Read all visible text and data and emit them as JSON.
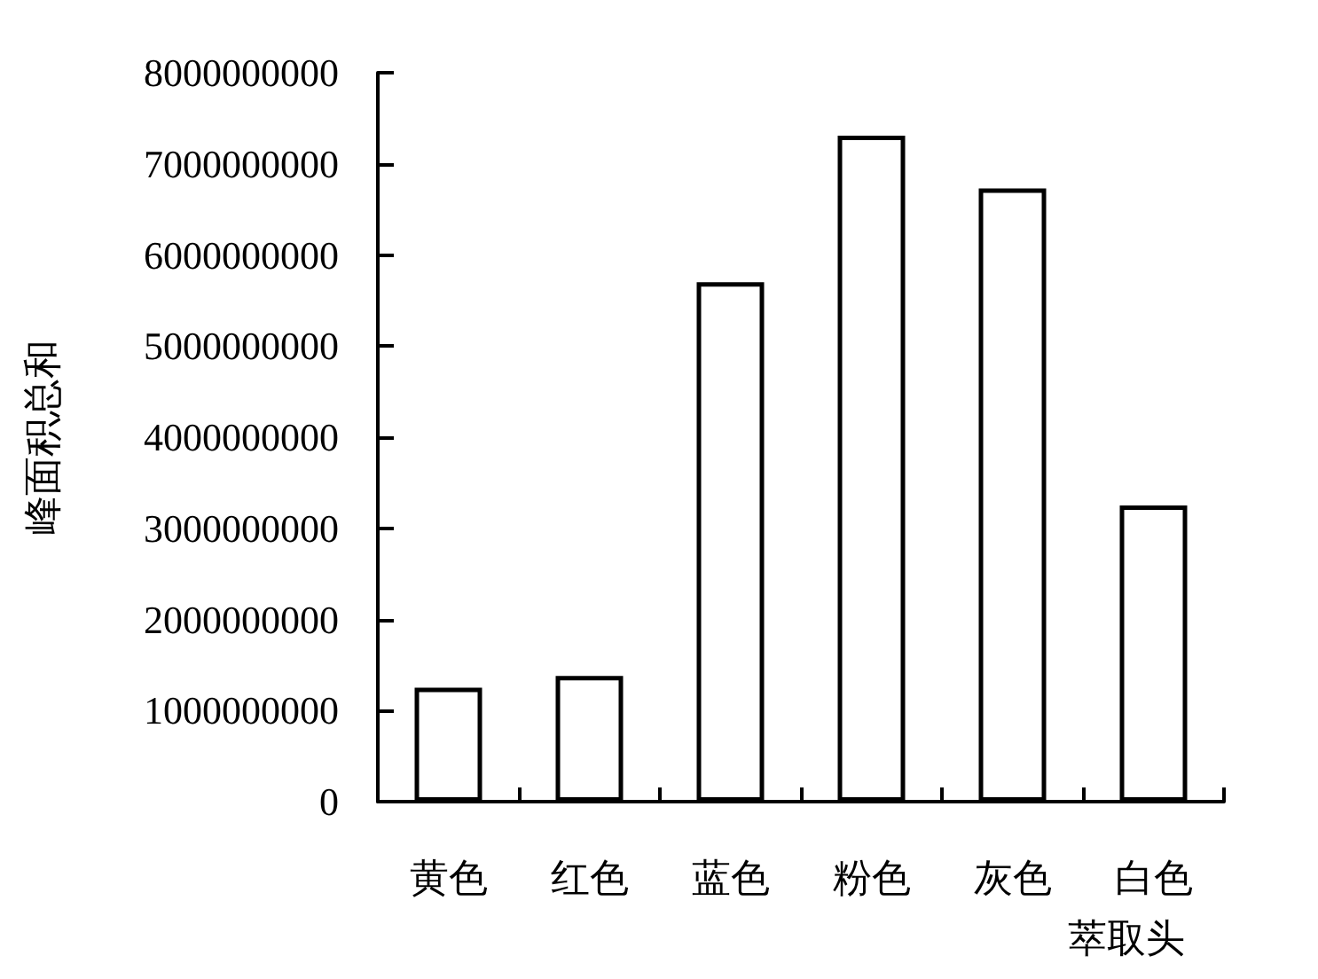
{
  "chart_data": {
    "type": "bar",
    "ylabel": "峰面积总和",
    "xlabel": "萃取头",
    "categories": [
      "黄色",
      "红色",
      "蓝色",
      "粉色",
      "灰色",
      "白色"
    ],
    "values": [
      1250000000,
      1380000000,
      5700000000,
      7310000000,
      6730000000,
      3250000000
    ],
    "color": "#ffffff",
    "ylim": [
      0,
      8000000000
    ],
    "yticks": [
      0,
      1000000000,
      2000000000,
      3000000000,
      4000000000,
      5000000000,
      6000000000,
      7000000000,
      8000000000
    ],
    "grid": false
  }
}
